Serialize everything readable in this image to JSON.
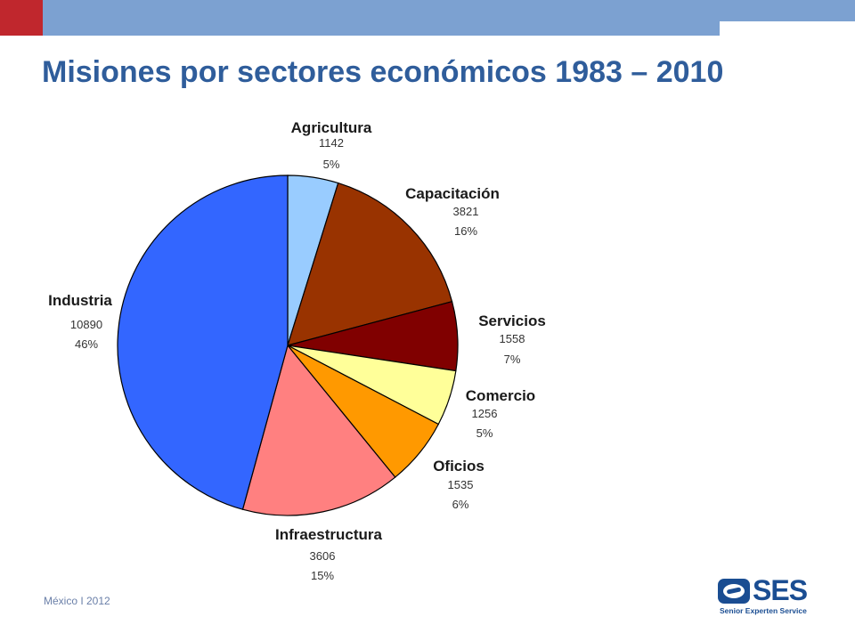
{
  "slide": {
    "title": "Misiones por sectores económicos 1983 – 2010",
    "footer": "México I 2012",
    "brand_colors": {
      "accent_red": "#c0272d",
      "accent_blue": "#7ca1d1",
      "title_blue": "#2f5d9b",
      "logo_blue": "#1a4d92"
    }
  },
  "logo": {
    "name": "SES",
    "tagline": "Senior Experten Service",
    "icon": "ses-logo-icon"
  },
  "chart_data": {
    "type": "pie",
    "title": "",
    "start_angle_deg": 0,
    "direction": "clockwise",
    "slices": [
      {
        "name": "Agricultura",
        "value": 1142,
        "percent": "5%",
        "color": "#99ccff"
      },
      {
        "name": "Capacitación",
        "value": 3821,
        "percent": "16%",
        "color": "#993300"
      },
      {
        "name": "Servicios",
        "value": 1558,
        "percent": "7%",
        "color": "#800000"
      },
      {
        "name": "Comercio",
        "value": 1256,
        "percent": "5%",
        "color": "#ffff99"
      },
      {
        "name": "Oficios",
        "value": 1535,
        "percent": "6%",
        "color": "#ff9900"
      },
      {
        "name": "Infraestructura",
        "value": 3606,
        "percent": "15%",
        "color": "#ff8080"
      },
      {
        "name": "Industria",
        "value": 10890,
        "percent": "46%",
        "color": "#3366ff"
      }
    ]
  }
}
